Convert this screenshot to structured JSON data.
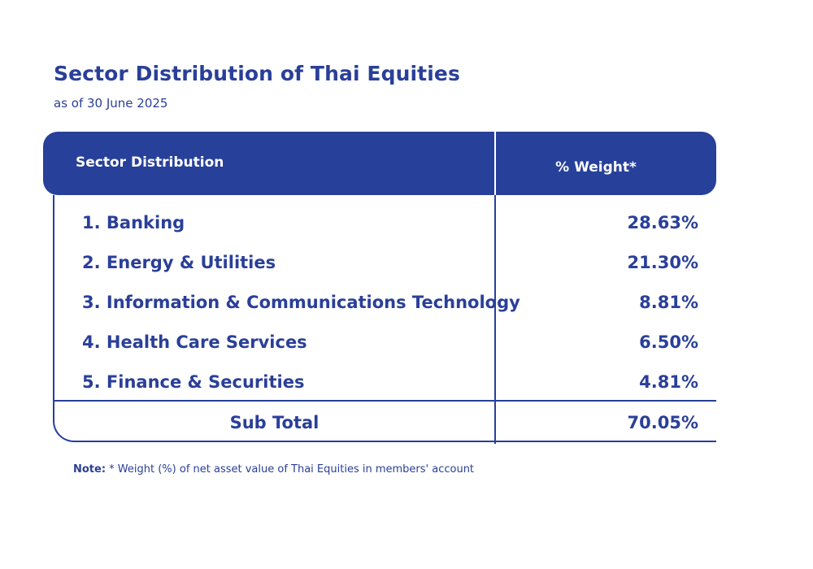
{
  "title": "Sector Distribution of Thai Equities",
  "subtitle": "as of 30 June 2025",
  "table": {
    "header_sector": "Sector Distribution",
    "header_weight": "% Weight*",
    "rows": [
      {
        "label": "1. Banking",
        "value": "28.63%"
      },
      {
        "label": "2. Energy & Utilities",
        "value": "21.30%"
      },
      {
        "label": "3. Information & Communications Technology",
        "value": "8.81%"
      },
      {
        "label": "4. Health Care Services",
        "value": "6.50%"
      },
      {
        "label": "5. Finance & Securities",
        "value": "4.81%"
      }
    ],
    "subtotal_label": "Sub Total",
    "subtotal_value": "70.05%"
  },
  "note": {
    "prefix": "Note:",
    "text": " * Weight (%) of net asset value of Thai Equities in members' account"
  },
  "colors": {
    "brand_blue": "#27409a",
    "text_blue": "#2a3f98",
    "background": "#ffffff"
  }
}
